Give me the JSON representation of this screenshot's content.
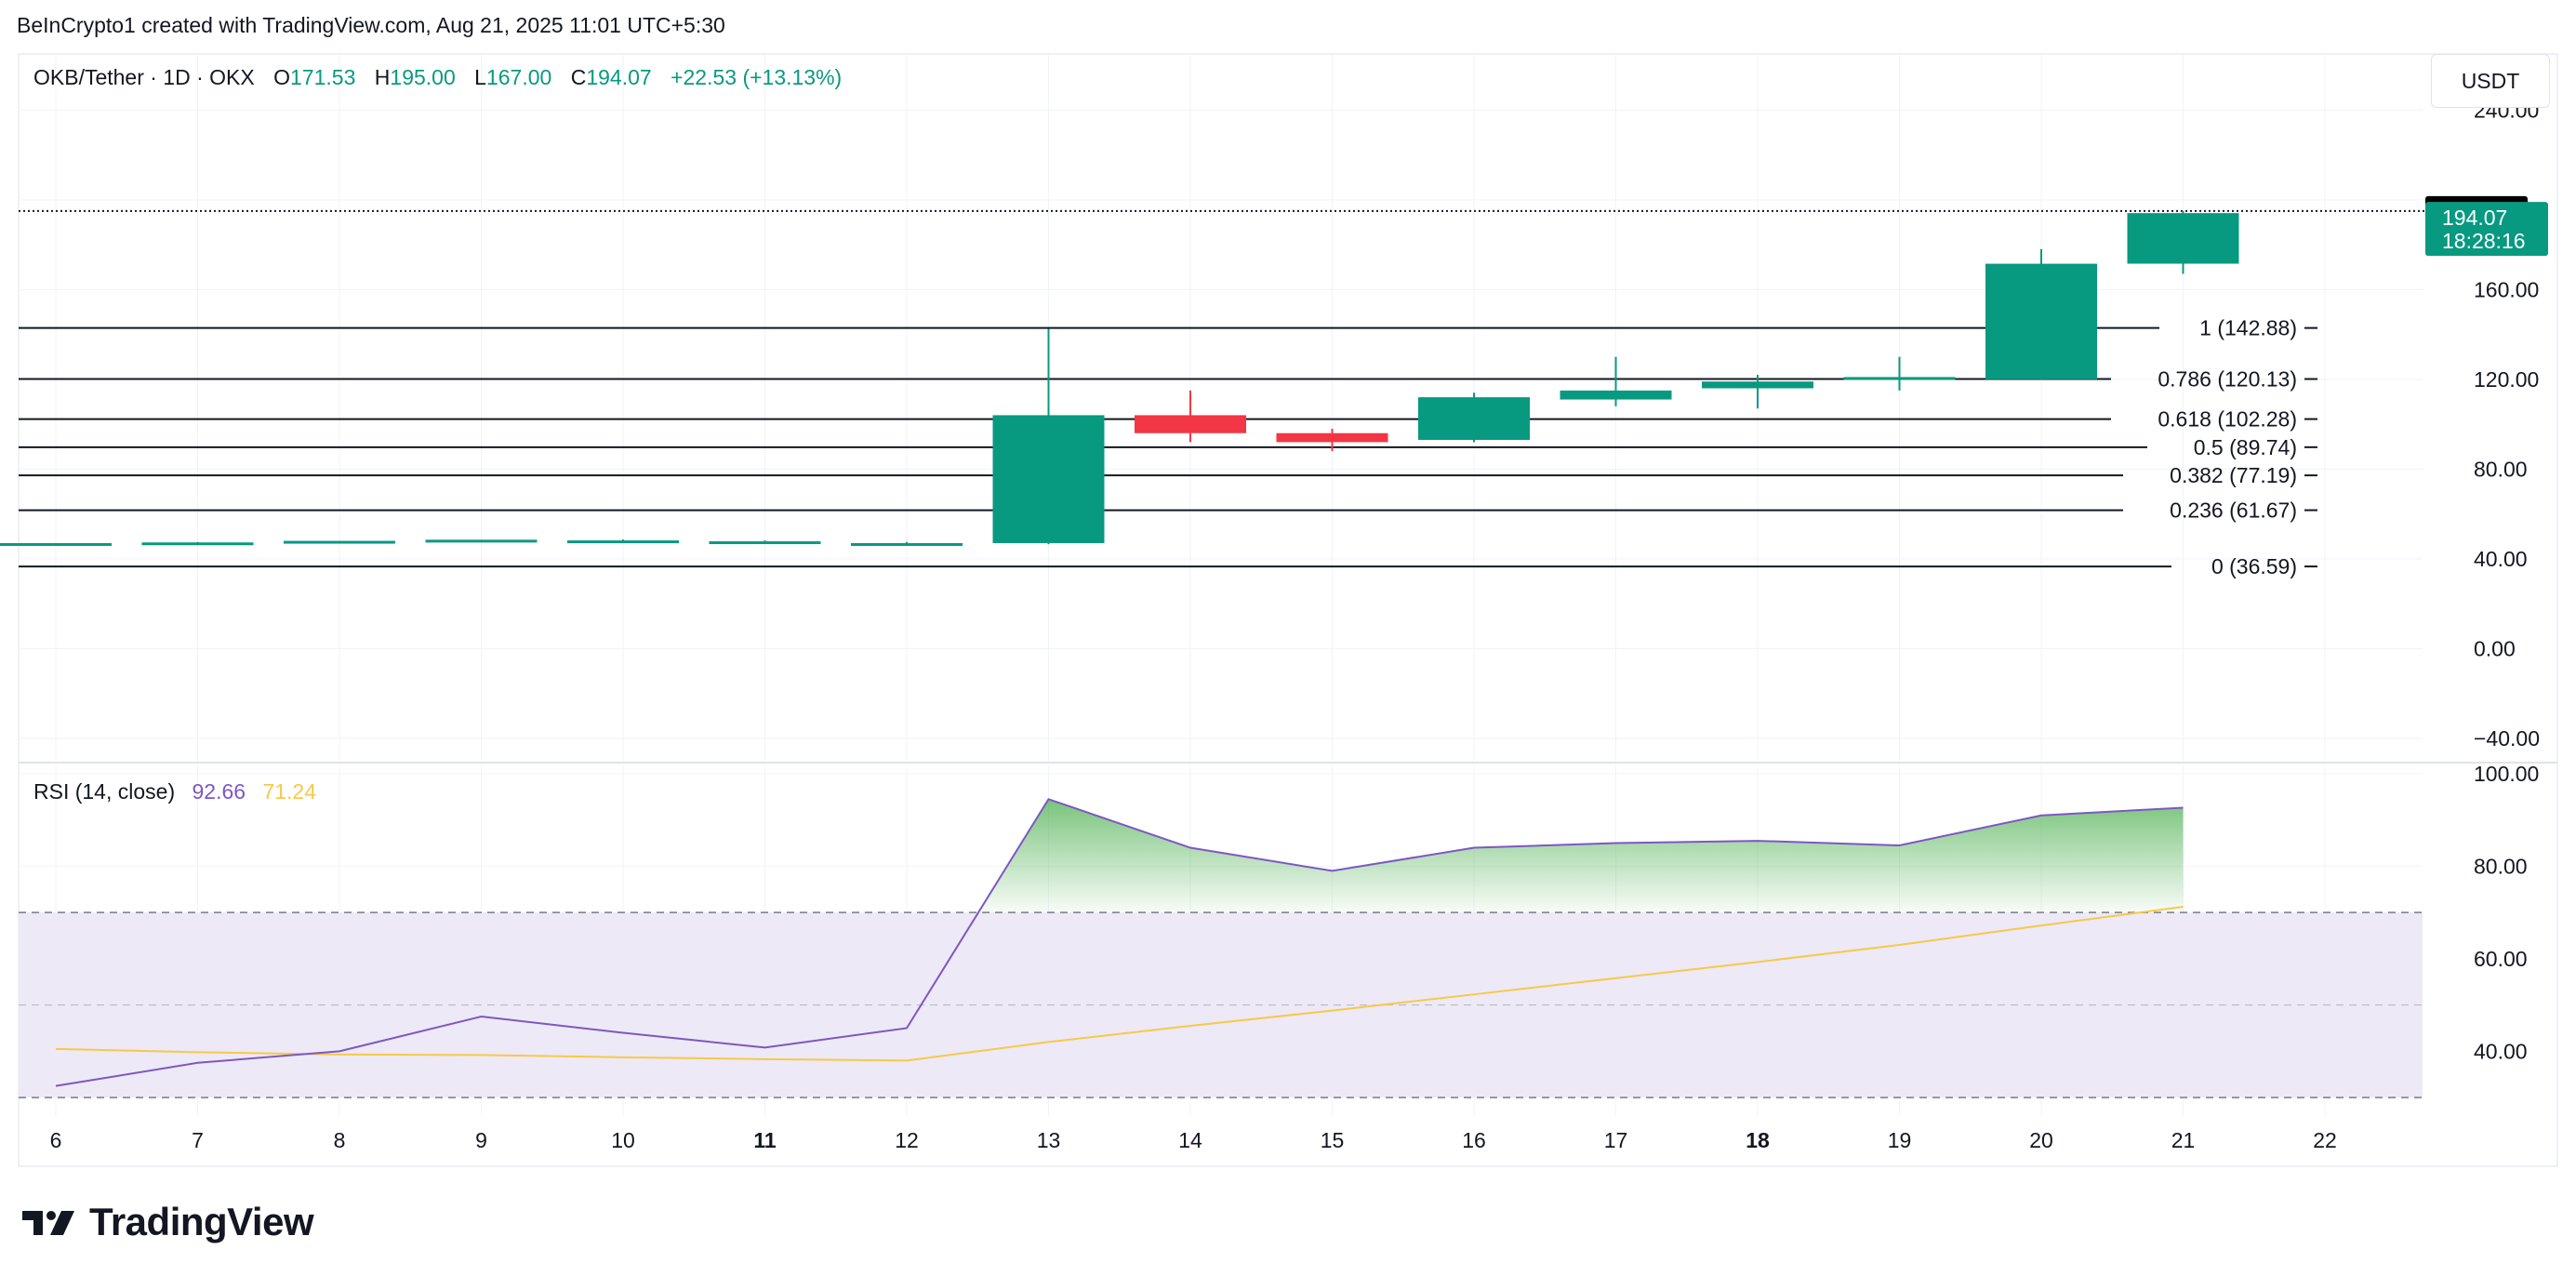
{
  "caption": "BeInCrypto1 created with TradingView.com, Aug 21, 2025 11:01 UTC+5:30",
  "currency": "USDT",
  "legend": {
    "symbol": "OKB/Tether · 1D · OKX",
    "o_label": "O",
    "o_value": "171.53",
    "h_label": "H",
    "h_value": "195.00",
    "l_label": "L",
    "l_value": "167.00",
    "c_label": "C",
    "c_value": "194.07",
    "change": "+22.53 (+13.13%)"
  },
  "rsi_legend": {
    "label": "RSI (14, close)",
    "rsi_value": "92.66",
    "ma_value": "71.24"
  },
  "colors": {
    "up": "#089981",
    "down": "#f23645",
    "rsi_line": "#7e57c2",
    "rsi_ma": "#f7c948",
    "rsi_band": "#ede9f7",
    "rsi_fill_top": "#4caf50",
    "price_tag_bg": "#089981",
    "high_tag_bg": "#000000"
  },
  "brand": "TradingView",
  "chart_data": [
    {
      "type": "candlestick",
      "x": [
        "6",
        "7",
        "8",
        "9",
        "10",
        "11",
        "12",
        "13",
        "14",
        "15",
        "16",
        "17",
        "18",
        "19",
        "20",
        "21"
      ],
      "x_ticks": [
        "6",
        "7",
        "8",
        "9",
        "10",
        "11",
        "12",
        "13",
        "14",
        "15",
        "16",
        "17",
        "18",
        "19",
        "20",
        "21",
        "22"
      ],
      "x_ticks_bold": [
        "11",
        "18"
      ],
      "open": [
        46.5,
        47.0,
        47.3,
        48.0,
        48.2,
        47.8,
        47.0,
        47.0,
        104.0,
        96.0,
        93.0,
        111.0,
        116.0,
        120.0,
        120.0,
        171.53
      ],
      "high": [
        47.0,
        47.5,
        48.0,
        48.5,
        48.6,
        48.2,
        47.5,
        142.5,
        115.0,
        98.0,
        114.0,
        130.0,
        122.0,
        130.0,
        178.0,
        195.0
      ],
      "low": [
        46.0,
        46.5,
        46.8,
        47.5,
        47.7,
        47.4,
        46.6,
        46.5,
        92.0,
        88.0,
        92.0,
        108.0,
        107.0,
        115.0,
        120.0,
        167.0
      ],
      "close": [
        47.0,
        47.3,
        48.0,
        48.5,
        48.2,
        47.8,
        47.0,
        104.0,
        96.0,
        92.0,
        112.0,
        115.0,
        119.0,
        121.0,
        171.5,
        194.07
      ],
      "ylim": [
        -50,
        265
      ],
      "y_ticks": [
        "240.00",
        "160.00",
        "120.00",
        "80.00",
        "40.00",
        "0.00",
        "−40.00"
      ],
      "y_tick_values": [
        240,
        160,
        120,
        80,
        40,
        0,
        -40
      ],
      "price_line": 195.0,
      "price_tags": [
        {
          "text": "195.00",
          "value": 195.0,
          "kind": "high"
        },
        {
          "text": "194.07",
          "sub": "18:28:16",
          "value": 194.07,
          "kind": "last"
        }
      ],
      "fib_levels": [
        {
          "label": "1 (142.88)",
          "value": 142.88
        },
        {
          "label": "0.786 (120.13)",
          "value": 120.13
        },
        {
          "label": "0.618 (102.28)",
          "value": 102.28
        },
        {
          "label": "0.5 (89.74)",
          "value": 89.74
        },
        {
          "label": "0.382 (77.19)",
          "value": 77.19
        },
        {
          "label": "0.236 (61.67)",
          "value": 61.67
        },
        {
          "label": "0 (36.59)",
          "value": 36.59
        }
      ]
    },
    {
      "type": "line",
      "title": "RSI (14, close)",
      "x": [
        "6",
        "7",
        "8",
        "9",
        "10",
        "11",
        "12",
        "13",
        "14",
        "15",
        "16",
        "17",
        "18",
        "19",
        "20",
        "21"
      ],
      "series": [
        {
          "name": "RSI",
          "values": [
            32.5,
            37.5,
            40.0,
            47.5,
            44.0,
            40.8,
            45.0,
            94.5,
            84.0,
            79.0,
            84.0,
            85.0,
            85.5,
            84.5,
            91.0,
            92.66
          ]
        },
        {
          "name": "RSI-based MA",
          "values": [
            40.5,
            39.8,
            39.3,
            39.2,
            38.7,
            38.3,
            38.0,
            42.0,
            45.5,
            48.8,
            52.3,
            55.8,
            59.3,
            63.0,
            67.2,
            71.24
          ]
        }
      ],
      "ylim": [
        26,
        102
      ],
      "y_ticks": [
        "100.00",
        "80.00",
        "60.00",
        "40.00"
      ],
      "y_tick_values": [
        100,
        80,
        60,
        40
      ],
      "band": [
        30,
        70
      ],
      "middle": 50,
      "overbought_fill_above": 70
    }
  ]
}
